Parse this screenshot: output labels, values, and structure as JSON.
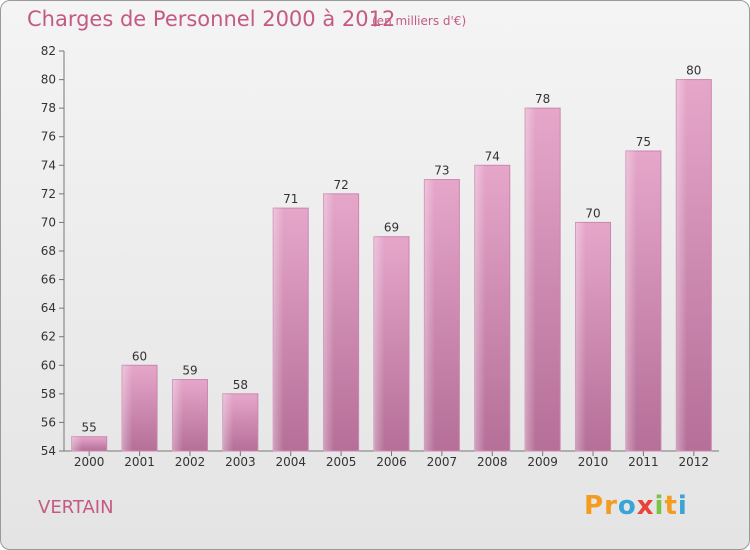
{
  "chart_data": {
    "type": "bar",
    "title": "Charges de Personnel 2000 à 2012",
    "subtitle": "(en milliers d'€)",
    "categories": [
      "2000",
      "2001",
      "2002",
      "2003",
      "2004",
      "2005",
      "2006",
      "2007",
      "2008",
      "2009",
      "2010",
      "2011",
      "2012"
    ],
    "values": [
      55,
      60,
      59,
      58,
      71,
      72,
      69,
      73,
      74,
      78,
      70,
      75,
      80
    ],
    "data_labels": [
      "55",
      "60",
      "59",
      "58",
      "71",
      "72",
      "69",
      "73",
      "74",
      "78",
      "70",
      "75",
      "80"
    ],
    "y_ticks": [
      "54",
      "56",
      "58",
      "60",
      "62",
      "64",
      "66",
      "68",
      "70",
      "72",
      "74",
      "76",
      "78",
      "80",
      "82"
    ],
    "ylim": [
      54,
      82
    ],
    "grid": false,
    "legend": "none",
    "bar_color": "#d98fb6",
    "bar_color_dark": "#b8709a"
  },
  "footer": {
    "commune": "VERTAIN",
    "logo_letters": [
      "P",
      "r",
      "o",
      "x",
      "i",
      "t",
      "i"
    ],
    "logo_colors": [
      "#f39c1f",
      "#f39c1f",
      "#3aa3d8",
      "#e8433a",
      "#7cc243",
      "#f39c1f",
      "#3aa3d8"
    ]
  }
}
